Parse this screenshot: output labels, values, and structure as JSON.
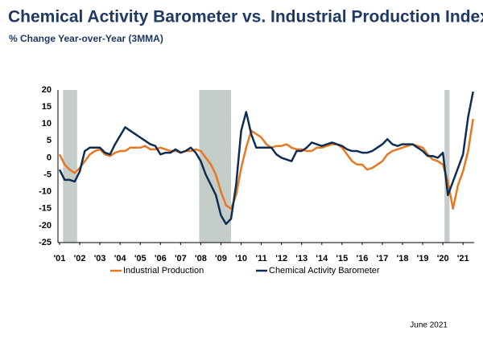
{
  "chart_data": {
    "type": "line",
    "title": "Chemical Activity Barometer vs. Industrial Production Index",
    "subtitle": "% Change Year-over-Year (3MMA)",
    "note": "June 2021",
    "x": [
      2001,
      2001.25,
      2001.5,
      2001.75,
      2002,
      2002.25,
      2002.5,
      2002.75,
      2003,
      2003.25,
      2003.5,
      2003.75,
      2004,
      2004.25,
      2004.5,
      2004.75,
      2005,
      2005.25,
      2005.5,
      2005.75,
      2006,
      2006.25,
      2006.5,
      2006.75,
      2007,
      2007.25,
      2007.5,
      2007.75,
      2008,
      2008.25,
      2008.5,
      2008.75,
      2009,
      2009.25,
      2009.5,
      2009.75,
      2010,
      2010.25,
      2010.5,
      2010.75,
      2011,
      2011.25,
      2011.5,
      2011.75,
      2012,
      2012.25,
      2012.5,
      2012.75,
      2013,
      2013.25,
      2013.5,
      2013.75,
      2014,
      2014.25,
      2014.5,
      2014.75,
      2015,
      2015.25,
      2015.5,
      2015.75,
      2016,
      2016.25,
      2016.5,
      2016.75,
      2017,
      2017.25,
      2017.5,
      2017.75,
      2018,
      2018.25,
      2018.5,
      2018.75,
      2019,
      2019.25,
      2019.5,
      2019.75,
      2020,
      2020.25,
      2020.5,
      2020.75,
      2021,
      2021.25,
      2021.5
    ],
    "series": [
      {
        "name": "Industrial Production",
        "color": "#e87722",
        "values": [
          1,
          -2,
          -3.5,
          -4.5,
          -3,
          -1,
          1,
          2,
          2.5,
          1,
          0.5,
          1.5,
          2,
          2,
          3,
          3,
          3,
          3.5,
          2.5,
          2.5,
          3,
          2.5,
          2,
          2,
          1.5,
          2,
          2,
          2.5,
          2,
          0,
          -2,
          -5,
          -10,
          -14,
          -15,
          -11,
          -3,
          3,
          8,
          7,
          6,
          4,
          3,
          3.5,
          3.5,
          4,
          3,
          2.5,
          2.5,
          2,
          2,
          3,
          3,
          3.5,
          4,
          4,
          3,
          1,
          -1,
          -2,
          -2,
          -3.5,
          -3,
          -2,
          -1,
          1,
          2,
          2.5,
          3,
          3.5,
          4,
          3.5,
          3,
          1,
          -0.5,
          -1,
          -2,
          -7,
          -15,
          -8,
          -4,
          2,
          11.5
        ]
      },
      {
        "name": "Chemical Activity Barometer",
        "color": "#0f2d52",
        "values": [
          -3.5,
          -6.5,
          -6.5,
          -7,
          -4,
          2,
          3,
          3,
          3,
          1.5,
          1,
          4,
          6.5,
          9,
          8,
          7,
          6,
          5,
          4,
          3.5,
          1,
          1.5,
          1.5,
          2.5,
          1.5,
          2,
          3,
          1.5,
          -1,
          -5,
          -8,
          -11,
          -17,
          -19.5,
          -18,
          -8,
          8,
          13.5,
          7,
          3,
          3,
          3,
          3,
          1,
          0,
          -0.5,
          -1,
          2,
          2,
          3,
          4.5,
          4,
          3.5,
          4,
          4.5,
          4,
          3.5,
          2.5,
          2,
          2,
          1.5,
          1.5,
          2,
          3,
          4,
          5.5,
          4,
          3.5,
          4,
          4,
          4,
          3,
          2,
          0.5,
          0.5,
          0,
          1.5,
          -11,
          -7,
          -3,
          1,
          12,
          19.5
        ]
      }
    ],
    "shaded_periods": [
      [
        2001.17,
        2001.87
      ],
      [
        2007.92,
        2009.5
      ],
      [
        2020.08,
        2020.33
      ]
    ],
    "shade_color": "#c5cdc9",
    "xlim": [
      2000.92,
      2021.55
    ],
    "xticks": [
      {
        "value": 2001,
        "label": "'01"
      },
      {
        "value": 2002,
        "label": "'02"
      },
      {
        "value": 2003,
        "label": "'03"
      },
      {
        "value": 2004,
        "label": "'04"
      },
      {
        "value": 2005,
        "label": "'05"
      },
      {
        "value": 2006,
        "label": "'06"
      },
      {
        "value": 2007,
        "label": "'07"
      },
      {
        "value": 2008,
        "label": "'08"
      },
      {
        "value": 2009,
        "label": "'09"
      },
      {
        "value": 2010,
        "label": "'10"
      },
      {
        "value": 2011,
        "label": "'11"
      },
      {
        "value": 2012,
        "label": "'12"
      },
      {
        "value": 2013,
        "label": "'13"
      },
      {
        "value": 2014,
        "label": "'14"
      },
      {
        "value": 2015,
        "label": "'15"
      },
      {
        "value": 2016,
        "label": "'16"
      },
      {
        "value": 2017,
        "label": "'17"
      },
      {
        "value": 2018,
        "label": "'18"
      },
      {
        "value": 2019,
        "label": "'19"
      },
      {
        "value": 2020,
        "label": "'20"
      },
      {
        "value": 2021,
        "label": "'21"
      }
    ],
    "ylim": [
      -25,
      20
    ],
    "yticks": [
      -25,
      -20,
      -15,
      -10,
      -5,
      0,
      5,
      10,
      15,
      20
    ]
  }
}
